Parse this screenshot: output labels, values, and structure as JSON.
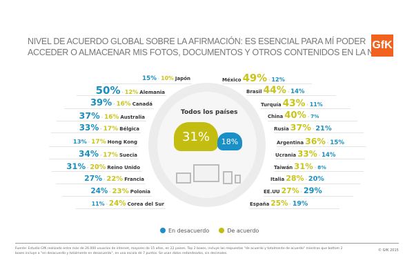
{
  "title_line1": "NIVEL DE ACUERDO GLOBAL SOBRE LA AFIRMACIÓN: ES ESENCIAL PARA MÍ PODER",
  "title_line2": "ACCEDER O ALMACENAR MIS FOTOS, DOCUMENTOS Y OTROS CONTENIDOS EN LA NUBE",
  "logo": "GfK",
  "colors": {
    "disagree": "#1a8fbf",
    "agree": "#c9c41a",
    "logo": "#f2611e"
  },
  "all_countries": {
    "label": "Todos los países",
    "agree": "31%",
    "disagree": "18%"
  },
  "left_countries": [
    {
      "country": "Japón",
      "disagree": "15%",
      "agree": "10%"
    },
    {
      "country": "Alemania",
      "disagree": "50%",
      "agree": "12%"
    },
    {
      "country": "Canadá",
      "disagree": "39%",
      "agree": "16%"
    },
    {
      "country": "Australia",
      "disagree": "37%",
      "agree": "16%"
    },
    {
      "country": "Bélgica",
      "disagree": "33%",
      "agree": "17%"
    },
    {
      "country": "Hong Kong",
      "disagree": "13%",
      "agree": "17%"
    },
    {
      "country": "Suecia",
      "disagree": "34%",
      "agree": "17%"
    },
    {
      "country": "Reino Unido",
      "disagree": "31%",
      "agree": "20%"
    },
    {
      "country": "Francia",
      "disagree": "27%",
      "agree": "22%"
    },
    {
      "country": "Polonia",
      "disagree": "24%",
      "agree": "23%"
    },
    {
      "country": "Corea del Sur",
      "disagree": "11%",
      "agree": "24%"
    }
  ],
  "right_countries": [
    {
      "country": "México",
      "agree": "49%",
      "disagree": "12%"
    },
    {
      "country": "Brasil",
      "agree": "44%",
      "disagree": "14%"
    },
    {
      "country": "Turquía",
      "agree": "43%",
      "disagree": "11%"
    },
    {
      "country": "China",
      "agree": "40%",
      "disagree": "7%"
    },
    {
      "country": "Rusia",
      "agree": "37%",
      "disagree": "21%"
    },
    {
      "country": "Argentina",
      "agree": "36%",
      "disagree": "15%"
    },
    {
      "country": "Ucrania",
      "agree": "33%",
      "disagree": "14%"
    },
    {
      "country": "Taiwán",
      "agree": "31%",
      "disagree": "8%"
    },
    {
      "country": "Italia",
      "agree": "28%",
      "disagree": "20%"
    },
    {
      "country": "EE.UU",
      "agree": "27%",
      "disagree": "29%"
    },
    {
      "country": "España",
      "agree": "25%",
      "disagree": "19%"
    }
  ],
  "legend": {
    "disagree": "En desacuerdo",
    "agree": "De acuerdo"
  },
  "footer_note": "Fuente: Estudio GfK realizado entre más de 26.000 usuarios de internet, mayores de 15 años, en 22 países. Top 2 boxes, incluye las respuestas \"de acuerdo y totalmente de acuerdo\" mientras que bottom 2 boxes incluye a \"en desacuerdo y totalmente en desacuerdo\", en una escala de 7 puntos. Se usan datos redondeados, sin decimales.",
  "copyright": "© GfK 2015"
}
